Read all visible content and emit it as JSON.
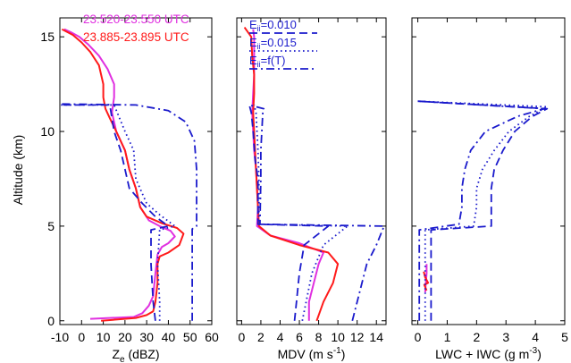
{
  "figure": {
    "ylabel": "Altitude (km)"
  },
  "chart_data": [
    {
      "type": "line",
      "xlabel": "Ze (dBZ)",
      "xlabel_main": "Z",
      "xlabel_sub": "e",
      "xlabel_rest": " (dBZ)",
      "ylabel": "Altitude (km)",
      "xlim": [
        -10,
        60
      ],
      "ylim": [
        -0.2,
        16
      ],
      "xticks": [
        -10,
        0,
        10,
        20,
        30,
        40,
        50,
        60
      ],
      "yticks": [
        0,
        5,
        10,
        15
      ],
      "xtick_labels": [
        "-10",
        "0",
        "10",
        "20",
        "30",
        "40",
        "50",
        "60"
      ],
      "ytick_labels": [
        "0",
        "5",
        "10",
        "15"
      ],
      "legend": {
        "position": "top-right",
        "entries": [
          {
            "label": "23.520-23.550 UTC",
            "color": "#e030e0"
          },
          {
            "label": "23.885-23.895 UTC",
            "color": "#ff1a1a"
          }
        ]
      },
      "series": [
        {
          "name": "23.520-23.550 UTC",
          "color": "#e030e0",
          "style": "solid",
          "points": [
            [
              4,
              0.1
            ],
            [
              24,
              0.2
            ],
            [
              28,
              0.4
            ],
            [
              31,
              0.8
            ],
            [
              33,
              1.3
            ],
            [
              34,
              2.5
            ],
            [
              35,
              3.5
            ],
            [
              37,
              3.9
            ],
            [
              40,
              4.1
            ],
            [
              43,
              4.45
            ],
            [
              41,
              4.75
            ],
            [
              36,
              5.0
            ],
            [
              31,
              5.3
            ],
            [
              27,
              6.0
            ],
            [
              25,
              7.0
            ],
            [
              22,
              8.0
            ],
            [
              20,
              9.0
            ],
            [
              16,
              10.0
            ],
            [
              14,
              11.0
            ],
            [
              15,
              11.8
            ],
            [
              15,
              12.5
            ],
            [
              12,
              13.3
            ],
            [
              8,
              14.0
            ],
            [
              3,
              14.6
            ],
            [
              -1,
              15.0
            ],
            [
              -5,
              15.25
            ],
            [
              -8,
              15.4
            ]
          ]
        },
        {
          "name": "23.885-23.895 UTC",
          "color": "#ff1a1a",
          "style": "solid",
          "points": [
            [
              9,
              0.0
            ],
            [
              25,
              0.15
            ],
            [
              30,
              0.3
            ],
            [
              33,
              0.5
            ],
            [
              34,
              1.0
            ],
            [
              35,
              2.0
            ],
            [
              35,
              3.0
            ],
            [
              36,
              3.4
            ],
            [
              40,
              3.6
            ],
            [
              45,
              4.0
            ],
            [
              47,
              4.6
            ],
            [
              44,
              4.9
            ],
            [
              37,
              5.15
            ],
            [
              30,
              5.5
            ],
            [
              27,
              6.0
            ],
            [
              25,
              7.0
            ],
            [
              22,
              8.0
            ],
            [
              20,
              9.0
            ],
            [
              16,
              10.0
            ],
            [
              13,
              10.7
            ],
            [
              11,
              11.2
            ],
            [
              10,
              11.8
            ],
            [
              10,
              12.5
            ],
            [
              8,
              13.5
            ],
            [
              4,
              14.2
            ],
            [
              0,
              14.7
            ],
            [
              -4,
              15.1
            ],
            [
              -9,
              15.4
            ]
          ]
        },
        {
          "name": "",
          "color": "#1a1acc",
          "style": "dashed",
          "points": [
            [
              34,
              0.0
            ],
            [
              33,
              1.0
            ],
            [
              32,
              3.0
            ],
            [
              32,
              4.8
            ],
            [
              40,
              5.0
            ],
            [
              34,
              5.5
            ],
            [
              28,
              6.2
            ],
            [
              22,
              7.0
            ],
            [
              20,
              8.0
            ],
            [
              18,
              9.0
            ],
            [
              15,
              10.0
            ],
            [
              13,
              11.4
            ],
            [
              -10,
              11.4
            ]
          ]
        },
        {
          "name": "",
          "color": "#1a1acc",
          "style": "dotted",
          "points": [
            [
              36,
              0.0
            ],
            [
              36,
              1.0
            ],
            [
              35,
              3.0
            ],
            [
              36,
              4.8
            ],
            [
              43,
              5.0
            ],
            [
              36,
              5.6
            ],
            [
              30,
              6.2
            ],
            [
              25,
              7.5
            ],
            [
              24,
              9.0
            ],
            [
              20,
              10.0
            ],
            [
              15,
              11.4
            ],
            [
              -10,
              11.4
            ]
          ]
        },
        {
          "name": "",
          "color": "#1a1acc",
          "style": "dashdot",
          "points": [
            [
              51,
              0.0
            ],
            [
              51,
              2.5
            ],
            [
              51,
              4.85
            ],
            [
              53,
              5.0
            ],
            [
              53,
              8.0
            ],
            [
              52,
              9.5
            ],
            [
              48,
              10.5
            ],
            [
              40,
              11.1
            ],
            [
              25,
              11.4
            ],
            [
              -10,
              11.45
            ]
          ]
        }
      ]
    },
    {
      "type": "line",
      "xlabel": "MDV (m s-1)",
      "xlabel_main": "MDV (m s",
      "xlabel_sup": "-1",
      "xlabel_rest": ")",
      "xlim": [
        -0.5,
        15
      ],
      "ylim": [
        -0.2,
        16
      ],
      "xticks": [
        0,
        2,
        4,
        6,
        8,
        10,
        12,
        14
      ],
      "yticks": [
        0,
        5,
        10,
        15
      ],
      "xtick_labels": [
        "0",
        "2",
        "4",
        "6",
        "8",
        "10",
        "12",
        "14"
      ],
      "legend": {
        "position": "top-left",
        "entries": [
          {
            "label_main": "E",
            "label_sub": "ii",
            "label_rest": "=0.010",
            "style": "dashed",
            "color": "#1a1acc"
          },
          {
            "label_main": "E",
            "label_sub": "ii",
            "label_rest": "=0.015",
            "style": "dotted",
            "color": "#1a1acc"
          },
          {
            "label_main": "E",
            "label_sub": "ii",
            "label_rest": "=f(T)",
            "style": "dashdot",
            "color": "#1a1acc"
          }
        ]
      },
      "series": [
        {
          "name": "",
          "color": "#e030e0",
          "style": "solid",
          "points": [
            [
              7,
              0.0
            ],
            [
              7,
              1.0
            ],
            [
              7.5,
              2.0
            ],
            [
              8,
              3.0
            ],
            [
              8.5,
              3.6
            ],
            [
              6,
              4.1
            ],
            [
              3,
              4.5
            ],
            [
              1.6,
              5.0
            ],
            [
              1.7,
              6.0
            ],
            [
              1.6,
              7.0
            ],
            [
              1.5,
              8.0
            ],
            [
              1.3,
              9.0
            ],
            [
              1.2,
              10.0
            ],
            [
              1.1,
              11.0
            ],
            [
              1.2,
              12.0
            ],
            [
              1.3,
              13.0
            ],
            [
              1.3,
              14.0
            ],
            [
              1.3,
              15.0
            ],
            [
              1.2,
              15.4
            ]
          ]
        },
        {
          "name": "",
          "color": "#ff1a1a",
          "style": "solid",
          "points": [
            [
              7.8,
              0.0
            ],
            [
              8.5,
              1.0
            ],
            [
              9.5,
              2.0
            ],
            [
              10,
              3.0
            ],
            [
              9,
              3.6
            ],
            [
              6,
              4.0
            ],
            [
              3,
              4.5
            ],
            [
              1.8,
              5.0
            ],
            [
              1.7,
              6.0
            ],
            [
              1.5,
              8.0
            ],
            [
              1.3,
              10.0
            ],
            [
              1.2,
              11.0
            ],
            [
              1.3,
              12.0
            ],
            [
              1.3,
              13.0
            ],
            [
              1.1,
              14.0
            ],
            [
              1.0,
              15.0
            ],
            [
              0.3,
              15.5
            ]
          ]
        },
        {
          "name": "",
          "color": "#1a1acc",
          "style": "dashed",
          "points": [
            [
              5.5,
              0.0
            ],
            [
              5.7,
              1.0
            ],
            [
              6.0,
              2.5
            ],
            [
              6.5,
              4.0
            ],
            [
              9,
              5.0
            ],
            [
              1.7,
              5.1
            ],
            [
              1.7,
              7.5
            ],
            [
              1.4,
              8.5
            ],
            [
              1.2,
              10.0
            ],
            [
              1.0,
              11.0
            ],
            [
              0.8,
              11.4
            ]
          ]
        },
        {
          "name": "",
          "color": "#1a1acc",
          "style": "dotted",
          "points": [
            [
              6.3,
              0.0
            ],
            [
              6.7,
              1.0
            ],
            [
              7.3,
              2.5
            ],
            [
              8.5,
              4.0
            ],
            [
              11,
              5.0
            ],
            [
              1.8,
              5.1
            ],
            [
              1.8,
              7.5
            ],
            [
              1.7,
              9.0
            ],
            [
              1.6,
              10.0
            ],
            [
              1.5,
              11.0
            ],
            [
              1.3,
              11.4
            ]
          ]
        },
        {
          "name": "",
          "color": "#1a1acc",
          "style": "dashdot",
          "points": [
            [
              11.5,
              0.0
            ],
            [
              12,
              1.0
            ],
            [
              12.5,
              2.0
            ],
            [
              13,
              3.0
            ],
            [
              14,
              4.0
            ],
            [
              14.8,
              5.0
            ],
            [
              1.9,
              5.1
            ],
            [
              2.0,
              7.5
            ],
            [
              2.0,
              9.0
            ],
            [
              2.1,
              10.0
            ],
            [
              2.2,
              11.0
            ],
            [
              2.3,
              11.2
            ],
            [
              0.8,
              11.4
            ]
          ]
        }
      ]
    },
    {
      "type": "line",
      "xlabel": "LWC + IWC (g m-3)",
      "xlabel_main": "LWC + IWC (g m",
      "xlabel_sup": "-3",
      "xlabel_rest": ")",
      "xlim": [
        -0.2,
        5
      ],
      "ylim": [
        -0.2,
        16
      ],
      "xticks": [
        0,
        1,
        2,
        3,
        4,
        5
      ],
      "yticks": [
        0,
        5,
        10,
        15
      ],
      "xtick_labels": [
        "0",
        "1",
        "2",
        "3",
        "4",
        "5"
      ],
      "series": [
        {
          "name": "",
          "color": "#e030e0",
          "style": "solid",
          "points": [
            [
              0.25,
              1.5
            ],
            [
              0.27,
              2.0
            ],
            [
              0.3,
              2.5
            ],
            [
              0.3,
              3.0
            ]
          ]
        },
        {
          "name": "",
          "color": "#ff1a1a",
          "style": "solid",
          "points": [
            [
              0.3,
              1.6
            ],
            [
              0.22,
              1.9
            ],
            [
              0.35,
              2.0
            ],
            [
              0.25,
              2.3
            ],
            [
              0.2,
              2.6
            ]
          ]
        },
        {
          "name": "",
          "color": "#1a1acc",
          "style": "dashed",
          "points": [
            [
              0.45,
              0.0
            ],
            [
              0.45,
              4.8
            ],
            [
              2.5,
              5.0
            ],
            [
              2.5,
              6.0
            ],
            [
              2.5,
              7.0
            ],
            [
              2.6,
              8.0
            ],
            [
              2.9,
              9.0
            ],
            [
              3.3,
              10.0
            ],
            [
              3.9,
              10.8
            ],
            [
              4.4,
              11.2
            ],
            [
              0.0,
              11.6
            ]
          ]
        },
        {
          "name": "",
          "color": "#1a1acc",
          "style": "dotted",
          "points": [
            [
              0.25,
              0.0
            ],
            [
              0.25,
              4.8
            ],
            [
              1.9,
              5.0
            ],
            [
              2.0,
              6.0
            ],
            [
              2.0,
              7.0
            ],
            [
              2.2,
              8.0
            ],
            [
              2.6,
              9.0
            ],
            [
              3.1,
              10.0
            ],
            [
              3.8,
              10.8
            ],
            [
              4.4,
              11.3
            ],
            [
              0.0,
              11.6
            ]
          ]
        },
        {
          "name": "",
          "color": "#1a1acc",
          "style": "dashdot",
          "points": [
            [
              0.05,
              0.0
            ],
            [
              0.05,
              4.8
            ],
            [
              1.4,
              5.1
            ],
            [
              1.5,
              6.0
            ],
            [
              1.5,
              7.0
            ],
            [
              1.6,
              8.0
            ],
            [
              1.8,
              9.0
            ],
            [
              2.3,
              10.0
            ],
            [
              3.4,
              10.8
            ],
            [
              4.3,
              11.2
            ],
            [
              0.0,
              11.6
            ]
          ]
        }
      ]
    }
  ]
}
